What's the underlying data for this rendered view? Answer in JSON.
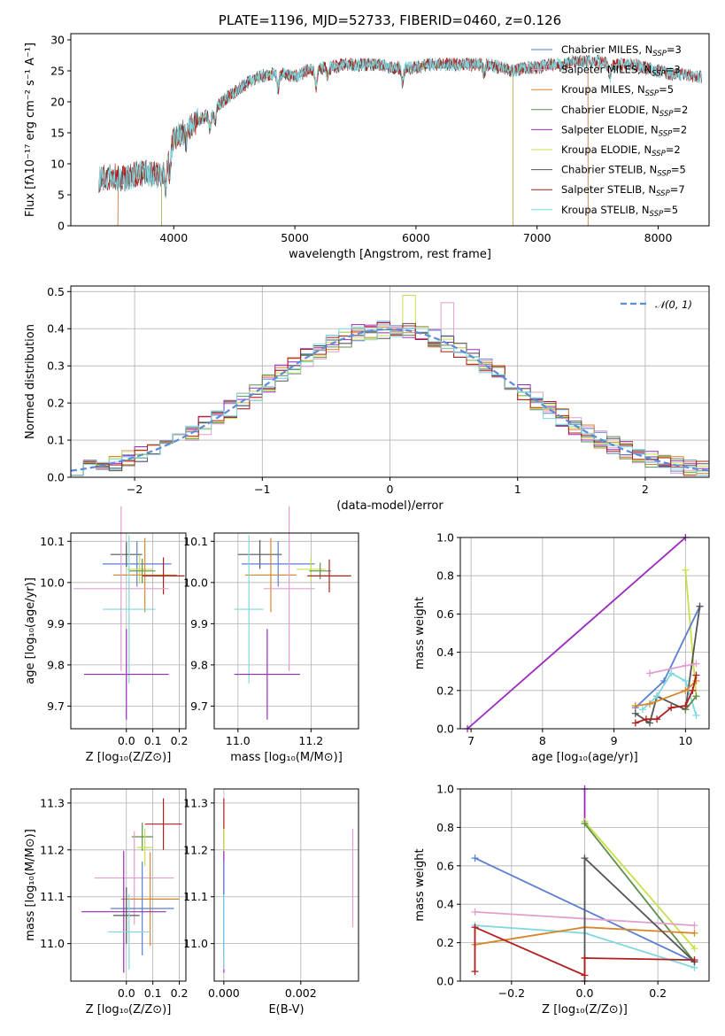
{
  "colors": {
    "chabrier_miles": "#5a7fd1",
    "salpeter_miles": "#e09fcf",
    "kroupa_miles": "#d8862a",
    "chabrier_elodie": "#5f8f4e",
    "salpeter_elodie": "#9b2bbd",
    "kroupa_elodie": "#c8e04a",
    "chabrier_stelib": "#555555",
    "salpeter_stelib": "#b01f1f",
    "kroupa_stelib": "#7fd8e0",
    "normal": "#5b8bd9"
  },
  "chart_data": [
    {
      "id": "spectrum",
      "type": "line",
      "title": "PLATE=1196, MJD=52733, FIBERID=0460, z=0.126",
      "xlabel": "wavelength [Angstrom, rest frame]",
      "ylabel": "Flux [fλ10⁻¹⁷ erg cm⁻² s⁻¹ A⁻¹]",
      "xlim": [
        3150,
        8420
      ],
      "ylim": [
        0,
        31
      ],
      "xticks": [
        4000,
        5000,
        6000,
        7000,
        8000
      ],
      "yticks": [
        0,
        5,
        10,
        15,
        20,
        25,
        30
      ],
      "grid": false,
      "legend_position": "top-right",
      "legend": [
        {
          "key": "chabrier_miles",
          "label": "Chabrier MILES, N",
          "sub": "SSP",
          "val": "=3"
        },
        {
          "key": "salpeter_miles",
          "label": "Salpeter MILES, N",
          "sub": "SSP",
          "val": "=3"
        },
        {
          "key": "kroupa_miles",
          "label": "Kroupa MILES, N",
          "sub": "SSP",
          "val": "=5"
        },
        {
          "key": "chabrier_elodie",
          "label": "Chabrier ELODIE, N",
          "sub": "SSP",
          "val": "=2"
        },
        {
          "key": "salpeter_elodie",
          "label": "Salpeter ELODIE, N",
          "sub": "SSP",
          "val": "=2"
        },
        {
          "key": "kroupa_elodie",
          "label": "Kroupa ELODIE, N",
          "sub": "SSP",
          "val": "=2"
        },
        {
          "key": "chabrier_stelib",
          "label": "Chabrier STELIB, N",
          "sub": "SSP",
          "val": "=5"
        },
        {
          "key": "salpeter_stelib",
          "label": "Salpeter STELIB, N",
          "sub": "SSP",
          "val": "=7"
        },
        {
          "key": "kroupa_stelib",
          "label": "Kroupa STELIB, N",
          "sub": "SSP",
          "val": "=5"
        }
      ],
      "continuum": [
        [
          3380,
          7.5
        ],
        [
          3500,
          8
        ],
        [
          3600,
          7.5
        ],
        [
          3700,
          8.5
        ],
        [
          3800,
          8.5
        ],
        [
          3900,
          8
        ],
        [
          4000,
          14
        ],
        [
          4100,
          15.5
        ],
        [
          4200,
          17
        ],
        [
          4300,
          18
        ],
        [
          4400,
          20
        ],
        [
          4500,
          21.5
        ],
        [
          4600,
          23
        ],
        [
          4700,
          24
        ],
        [
          4800,
          24.5
        ],
        [
          4900,
          24.5
        ],
        [
          5000,
          24
        ],
        [
          5100,
          25
        ],
        [
          5200,
          25.5
        ],
        [
          5300,
          25.5
        ],
        [
          5400,
          26
        ],
        [
          5500,
          26
        ],
        [
          5600,
          26
        ],
        [
          5700,
          26
        ],
        [
          5800,
          25.5
        ],
        [
          5900,
          25.5
        ],
        [
          6000,
          25.5
        ],
        [
          6100,
          26
        ],
        [
          6200,
          26
        ],
        [
          6300,
          26
        ],
        [
          6400,
          26
        ],
        [
          6500,
          26
        ],
        [
          6600,
          26
        ],
        [
          6700,
          25.5
        ],
        [
          6800,
          25
        ],
        [
          6900,
          25.5
        ],
        [
          7000,
          25.5
        ],
        [
          7100,
          26
        ],
        [
          7200,
          26
        ],
        [
          7300,
          26.5
        ],
        [
          7400,
          26.5
        ],
        [
          7500,
          26.5
        ],
        [
          7600,
          26
        ],
        [
          7700,
          26
        ],
        [
          7800,
          26
        ],
        [
          7900,
          25.5
        ],
        [
          8000,
          25
        ],
        [
          8100,
          24.5
        ],
        [
          8200,
          24.5
        ],
        [
          8300,
          24
        ],
        [
          8420,
          24
        ]
      ],
      "line_ranges": {
        "chabrier_miles": [
          3540,
          7420
        ],
        "salpeter_miles": [
          3540,
          7420
        ],
        "kroupa_miles": [
          3540,
          7420
        ],
        "chabrier_elodie": [
          3900,
          6800
        ],
        "salpeter_elodie": [
          3900,
          6800
        ],
        "kroupa_elodie": [
          3900,
          6800
        ],
        "chabrier_stelib": [
          3380,
          8360
        ],
        "salpeter_stelib": [
          3380,
          8360
        ],
        "kroupa_stelib": [
          3380,
          8360
        ]
      }
    },
    {
      "id": "residuals",
      "type": "histogram",
      "xlabel": "(data-model)/error",
      "ylabel": "Normed distribution",
      "xlim": [
        -2.5,
        2.5
      ],
      "ylim": [
        0,
        0.515
      ],
      "xticks": [
        -2,
        -1,
        0,
        1,
        2
      ],
      "xticklabels": [
        "−2",
        "−1",
        "0",
        "1",
        "2"
      ],
      "yticks": [
        0,
        0.1,
        0.2,
        0.3,
        0.4,
        0.5
      ],
      "yticklabels": [
        "0.0",
        "0.1",
        "0.2",
        "0.3",
        "0.4",
        "0.5"
      ],
      "grid": true,
      "legend_position": "top-right",
      "normal_label": "𝒩(0, 1)",
      "bins": {
        "start": -2.5,
        "width": 0.1,
        "count": 50
      },
      "special_peaks": [
        {
          "key": "kroupa_elodie",
          "bin": 26,
          "value": 0.49
        },
        {
          "key": "salpeter_miles",
          "bin": 29,
          "value": 0.47
        }
      ]
    },
    {
      "id": "z_age",
      "type": "errorbar",
      "xlabel": "Z [log₁₀(Z/Z⊙)]",
      "ylabel": "age  [log₁₀(age/yr)]",
      "xlim": [
        -0.21,
        0.225
      ],
      "ylim": [
        9.645,
        10.12
      ],
      "xticks": [
        0,
        0.1,
        0.2
      ],
      "xticklabels": [
        "0.0",
        "0.1",
        "0.2"
      ],
      "yticks": [
        9.7,
        9.8,
        9.9,
        10.0,
        10.1
      ],
      "yticklabels": [
        "9.7",
        "9.8",
        "9.9",
        "10.0",
        "10.1"
      ],
      "grid": true,
      "points": [
        {
          "key": "chabrier_stelib",
          "x": 0.0,
          "xerr": 0.06,
          "y": 10.068,
          "yerr": 0.03
        },
        {
          "key": "chabrier_miles",
          "x": 0.04,
          "xerr": 0.13,
          "y": 10.045,
          "yerr": 0.055
        },
        {
          "key": "kroupa_elodie",
          "x": 0.05,
          "xerr": 0.05,
          "y": 10.032,
          "yerr": 0.035
        },
        {
          "key": "chabrier_elodie",
          "x": 0.06,
          "xerr": 0.05,
          "y": 10.028,
          "yerr": 0.03
        },
        {
          "key": "kroupa_miles",
          "x": 0.07,
          "xerr": 0.12,
          "y": 10.018,
          "yerr": 0.09
        },
        {
          "key": "salpeter_stelib",
          "x": 0.14,
          "xerr": 0.08,
          "y": 10.016,
          "yerr": 0.045
        },
        {
          "key": "salpeter_miles",
          "x": -0.02,
          "xerr": 0.18,
          "y": 9.985,
          "yerr": 0.2
        },
        {
          "key": "kroupa_stelib",
          "x": 0.01,
          "xerr": 0.1,
          "y": 9.935,
          "yerr": 0.18
        },
        {
          "key": "salpeter_elodie",
          "x": 0.0,
          "xerr": 0.16,
          "y": 9.777,
          "yerr": 0.11
        }
      ]
    },
    {
      "id": "mass_age",
      "type": "errorbar",
      "xlabel": "mass [log₁₀(M/M⊙)]",
      "ylabel": "",
      "xlim": [
        10.935,
        11.33
      ],
      "ylim": [
        9.645,
        10.12
      ],
      "xticks": [
        11.0,
        11.2
      ],
      "xticklabels": [
        "11.0",
        "11.2"
      ],
      "yticks": [
        9.7,
        9.8,
        9.9,
        10.0,
        10.1
      ],
      "yticklabels": [
        "9.7",
        "9.8",
        "9.9",
        "10.0",
        "10.1"
      ],
      "grid": true,
      "points": [
        {
          "key": "chabrier_stelib",
          "x": 11.06,
          "xerr": 0.06,
          "y": 10.068,
          "yerr": 0.035
        },
        {
          "key": "chabrier_miles",
          "x": 11.11,
          "xerr": 0.1,
          "y": 10.045,
          "yerr": 0.055
        },
        {
          "key": "kroupa_elodie",
          "x": 11.2,
          "xerr": 0.04,
          "y": 10.032,
          "yerr": 0.03
        },
        {
          "key": "chabrier_elodie",
          "x": 11.225,
          "xerr": 0.03,
          "y": 10.028,
          "yerr": 0.02
        },
        {
          "key": "kroupa_miles",
          "x": 11.09,
          "xerr": 0.07,
          "y": 10.018,
          "yerr": 0.09
        },
        {
          "key": "salpeter_stelib",
          "x": 11.25,
          "xerr": 0.06,
          "y": 10.016,
          "yerr": 0.04
        },
        {
          "key": "salpeter_miles",
          "x": 11.14,
          "xerr": 0.07,
          "y": 9.985,
          "yerr": 0.2
        },
        {
          "key": "kroupa_stelib",
          "x": 11.03,
          "xerr": 0.04,
          "y": 9.935,
          "yerr": 0.18
        },
        {
          "key": "salpeter_elodie",
          "x": 11.08,
          "xerr": 0.09,
          "y": 9.777,
          "yerr": 0.11
        }
      ]
    },
    {
      "id": "age_weight",
      "type": "line",
      "xlabel": "age  [log₁₀(age/yr)]",
      "ylabel": "mass weight",
      "xlim": [
        6.85,
        10.33
      ],
      "ylim": [
        0,
        1
      ],
      "xticks": [
        7,
        8,
        9,
        10
      ],
      "xticklabels": [
        "7",
        "8",
        "9",
        "10"
      ],
      "yticks": [
        0,
        0.2,
        0.4,
        0.6,
        0.8,
        1.0
      ],
      "yticklabels": [
        "0.0",
        "0.2",
        "0.4",
        "0.6",
        "0.8",
        "1.0"
      ],
      "grid": true,
      "series": [
        {
          "key": "salpeter_elodie",
          "x": [
            6.95,
            10.0
          ],
          "y": [
            0.0,
            1.0
          ]
        },
        {
          "key": "kroupa_elodie",
          "x": [
            10.0,
            10.15
          ],
          "y": [
            0.83,
            0.17
          ]
        },
        {
          "key": "chabrier_miles",
          "x": [
            9.3,
            9.7,
            10.2
          ],
          "y": [
            0.11,
            0.25,
            0.64
          ]
        },
        {
          "key": "chabrier_stelib",
          "x": [
            9.3,
            9.5,
            9.6,
            10.0,
            10.2
          ],
          "y": [
            0.08,
            0.03,
            0.17,
            0.1,
            0.64
          ]
        },
        {
          "key": "salpeter_miles",
          "x": [
            9.5,
            10.0,
            10.15
          ],
          "y": [
            0.29,
            0.33,
            0.34
          ]
        },
        {
          "key": "kroupa_stelib",
          "x": [
            9.4,
            9.6,
            9.8,
            10.0,
            10.15
          ],
          "y": [
            0.1,
            0.17,
            0.29,
            0.25,
            0.07
          ]
        },
        {
          "key": "kroupa_miles",
          "x": [
            9.3,
            9.5,
            10.0,
            10.15
          ],
          "y": [
            0.12,
            0.13,
            0.2,
            0.25
          ]
        },
        {
          "key": "chabrier_elodie",
          "x": [
            10.0,
            10.15
          ],
          "y": [
            0.1,
            0.17
          ]
        },
        {
          "key": "salpeter_stelib",
          "x": [
            9.3,
            9.45,
            9.6,
            9.8,
            10.0,
            10.1,
            10.15
          ],
          "y": [
            0.03,
            0.05,
            0.05,
            0.11,
            0.12,
            0.2,
            0.28
          ]
        }
      ]
    },
    {
      "id": "z_mass",
      "type": "errorbar",
      "xlabel": "Z [log₁₀(Z/Z⊙)]",
      "ylabel": "mass [log₁₀(M/M⊙)]",
      "xlim": [
        -0.21,
        0.225
      ],
      "ylim": [
        10.92,
        11.33
      ],
      "xticks": [
        0,
        0.1,
        0.2
      ],
      "xticklabels": [
        "0.0",
        "0.1",
        "0.2"
      ],
      "yticks": [
        11.0,
        11.1,
        11.2,
        11.3
      ],
      "yticklabels": [
        "11.0",
        "11.1",
        "11.2",
        "11.3"
      ],
      "grid": true,
      "points": [
        {
          "key": "salpeter_stelib",
          "x": 0.14,
          "xerr": 0.07,
          "y": 11.255,
          "yerr": 0.055
        },
        {
          "key": "chabrier_elodie",
          "x": 0.06,
          "xerr": 0.04,
          "y": 11.228,
          "yerr": 0.03
        },
        {
          "key": "kroupa_elodie",
          "x": 0.07,
          "xerr": 0.03,
          "y": 11.205,
          "yerr": 0.04
        },
        {
          "key": "salpeter_miles",
          "x": 0.03,
          "xerr": 0.15,
          "y": 11.14,
          "yerr": 0.1
        },
        {
          "key": "kroupa_miles",
          "x": 0.09,
          "xerr": 0.11,
          "y": 11.095,
          "yerr": 0.1
        },
        {
          "key": "chabrier_miles",
          "x": 0.06,
          "xerr": 0.12,
          "y": 11.075,
          "yerr": 0.1
        },
        {
          "key": "salpeter_elodie",
          "x": -0.01,
          "xerr": 0.16,
          "y": 11.068,
          "yerr": 0.13
        },
        {
          "key": "chabrier_stelib",
          "x": 0.0,
          "xerr": 0.05,
          "y": 11.06,
          "yerr": 0.06
        },
        {
          "key": "kroupa_stelib",
          "x": 0.01,
          "xerr": 0.08,
          "y": 11.025,
          "yerr": 0.08
        }
      ]
    },
    {
      "id": "ebv_mass",
      "type": "errorbar",
      "xlabel": "E(B-V)",
      "ylabel": "",
      "xlim": [
        -0.00025,
        0.0035
      ],
      "ylim": [
        10.92,
        11.33
      ],
      "xticks": [
        0,
        0.002
      ],
      "xticklabels": [
        "0.000",
        "0.002"
      ],
      "yticks": [
        11.0,
        11.1,
        11.2,
        11.3
      ],
      "yticklabels": [
        "11.0",
        "11.1",
        "11.2",
        "11.3"
      ],
      "grid": true,
      "points": [
        {
          "key": "salpeter_stelib",
          "x": 0.0,
          "xerr": 0,
          "y": 11.255,
          "yerr": 0.055
        },
        {
          "key": "kroupa_elodie",
          "x": 0.0,
          "xerr": 0,
          "y": 11.205,
          "yerr": 0.04
        },
        {
          "key": "salpeter_elodie",
          "x": 0.0,
          "xerr": 0,
          "y": 11.068,
          "yerr": 0.13
        },
        {
          "key": "chabrier_miles",
          "x": 0.0,
          "xerr": 0,
          "y": 11.075,
          "yerr": 0.1
        },
        {
          "key": "kroupa_stelib",
          "x": 0.0,
          "xerr": 0,
          "y": 11.025,
          "yerr": 0.08
        },
        {
          "key": "salpeter_miles",
          "x": 0.00335,
          "xerr": 0,
          "y": 11.14,
          "yerr": 0.105
        }
      ]
    },
    {
      "id": "z_weight",
      "type": "line",
      "xlabel": "Z [log₁₀(Z/Z⊙)]",
      "ylabel": "mass weight",
      "xlim": [
        -0.34,
        0.34
      ],
      "ylim": [
        0,
        1
      ],
      "xticks": [
        -0.2,
        0,
        0.2
      ],
      "xticklabels": [
        "−0.2",
        "0.0",
        "0.2"
      ],
      "yticks": [
        0,
        0.2,
        0.4,
        0.6,
        0.8,
        1.0
      ],
      "yticklabels": [
        "0.0",
        "0.2",
        "0.4",
        "0.6",
        "0.8",
        "1.0"
      ],
      "grid": true,
      "series": [
        {
          "key": "salpeter_elodie",
          "x": [
            0.0,
            0.0
          ],
          "y": [
            0.83,
            1.0
          ]
        },
        {
          "key": "kroupa_elodie",
          "x": [
            0.0,
            0.3
          ],
          "y": [
            0.83,
            0.17
          ]
        },
        {
          "key": "chabrier_elodie",
          "x": [
            0.0,
            0.3
          ],
          "y": [
            0.82,
            0.1
          ]
        },
        {
          "key": "chabrier_miles",
          "x": [
            -0.3,
            0.3
          ],
          "y": [
            0.64,
            0.1
          ]
        },
        {
          "key": "salpeter_miles",
          "x": [
            -0.3,
            0.3
          ],
          "y": [
            0.36,
            0.29
          ]
        },
        {
          "key": "kroupa_stelib",
          "x": [
            -0.3,
            0.0,
            0.3
          ],
          "y": [
            0.29,
            0.25,
            0.07
          ]
        },
        {
          "key": "kroupa_miles",
          "x": [
            -0.3,
            0.0,
            0.3
          ],
          "y": [
            0.19,
            0.28,
            0.25
          ]
        },
        {
          "key": "chabrier_stelib",
          "x": [
            0.0,
            0.0,
            0.3
          ],
          "y": [
            0.0,
            0.64,
            0.1
          ]
        },
        {
          "key": "salpeter_stelib",
          "x": [
            -0.3,
            -0.3,
            0.0,
            0.0,
            0.3
          ],
          "y": [
            0.05,
            0.28,
            0.03,
            0.12,
            0.11
          ]
        }
      ]
    }
  ]
}
